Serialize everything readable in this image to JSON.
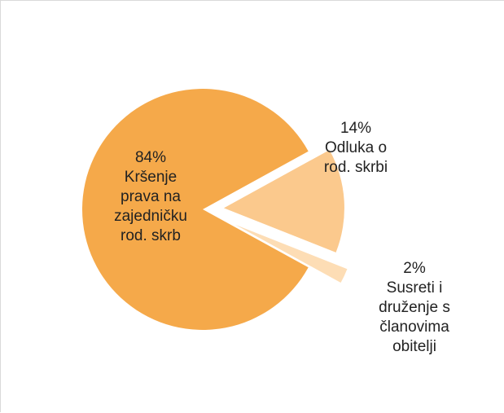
{
  "chart_data": {
    "type": "pie",
    "slices": [
      {
        "percent_label": "84%",
        "label_lines": [
          "Kršenje",
          "prava na",
          "zajedničku",
          "rod. skrb"
        ],
        "value": 84,
        "color": "#F5A94A"
      },
      {
        "percent_label": "14%",
        "label_lines": [
          "Odluka o",
          "rod. skrbi"
        ],
        "value": 14,
        "color": "#FBC98D"
      },
      {
        "percent_label": "2%",
        "label_lines": [
          "Susreti i",
          "druženje s",
          "članovima",
          "obitelji"
        ],
        "value": 2,
        "color": "#FDDDB5"
      }
    ],
    "legend": "none",
    "exploded": true
  }
}
